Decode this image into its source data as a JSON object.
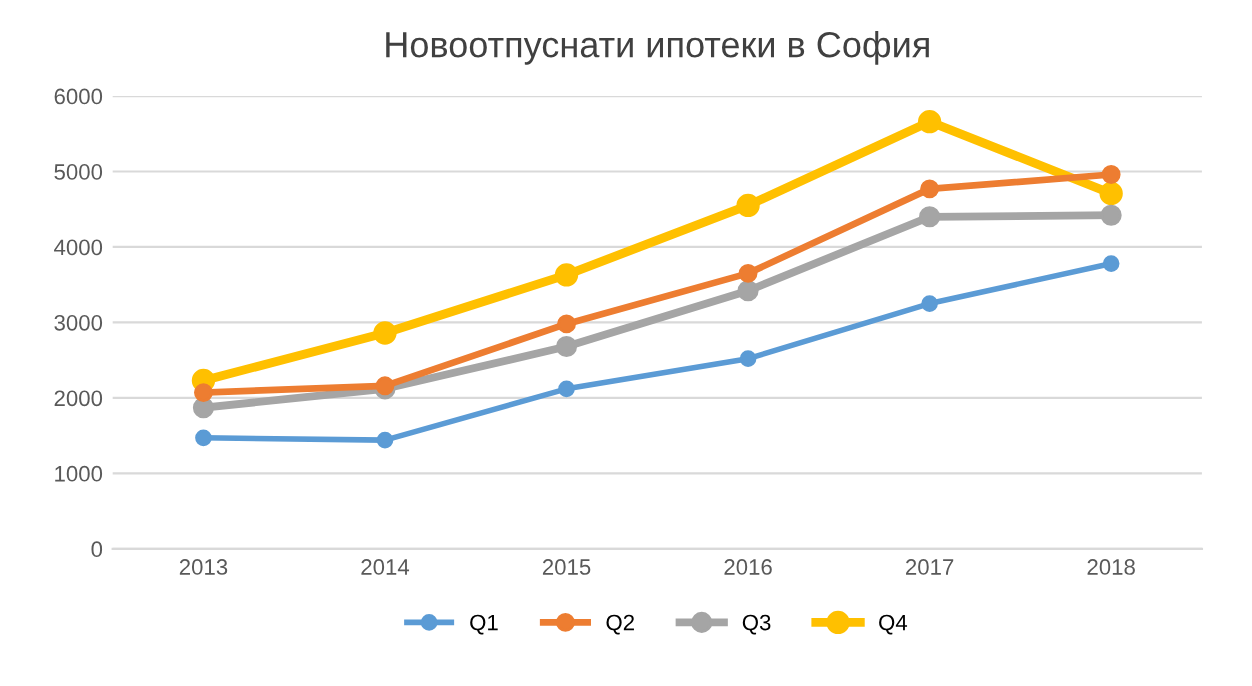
{
  "chart_data": {
    "type": "line",
    "title": "Новоотпуснати ипотеки в София",
    "categories": [
      "2013",
      "2014",
      "2015",
      "2016",
      "2017",
      "2018"
    ],
    "series": [
      {
        "name": "Q1",
        "color": "#5b9bd5",
        "values": [
          1470,
          1440,
          2120,
          2520,
          3250,
          3780
        ]
      },
      {
        "name": "Q2",
        "color": "#ed7d31",
        "values": [
          2070,
          2160,
          2980,
          3650,
          4770,
          4960
        ]
      },
      {
        "name": "Q3",
        "color": "#a5a5a5",
        "values": [
          1870,
          2120,
          2680,
          3420,
          4400,
          4420
        ]
      },
      {
        "name": "Q4",
        "color": "#ffc000",
        "values": [
          2230,
          2860,
          3630,
          4550,
          5660,
          4710
        ]
      }
    ],
    "ylim": [
      0,
      6000
    ],
    "yticks": [
      0,
      1000,
      2000,
      3000,
      4000,
      5000,
      6000
    ],
    "grid": "y",
    "legend": "bottom",
    "marker": "circle",
    "line_style": "solid"
  }
}
